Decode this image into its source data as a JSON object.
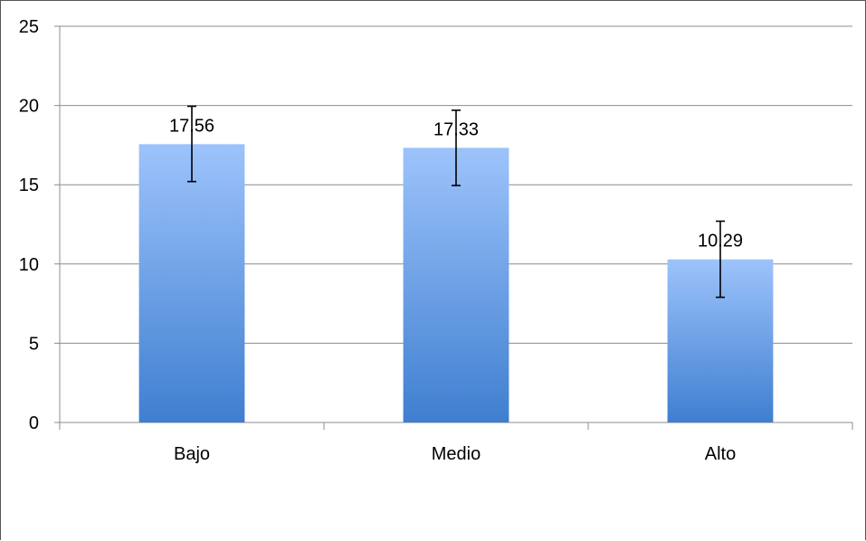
{
  "chart_data": {
    "type": "bar",
    "title": "",
    "xlabel": "",
    "ylabel": "",
    "categories": [
      "Bajo",
      "Medio",
      "Alto"
    ],
    "values": [
      17.56,
      17.33,
      10.29
    ],
    "value_labels": [
      "17.56",
      "17.33",
      "10.29"
    ],
    "error_bars": [
      {
        "low": 15.2,
        "high": 19.95
      },
      {
        "low": 14.95,
        "high": 19.7
      },
      {
        "low": 7.9,
        "high": 12.7
      }
    ],
    "ylim": [
      0,
      25
    ],
    "yticks": [
      0,
      5,
      10,
      15,
      20,
      25
    ],
    "ytick_labels": [
      "0",
      "5",
      "10",
      "15",
      "20",
      "25"
    ],
    "grid": true,
    "legend": "none",
    "colors": {
      "bar_top": "#9dc3fb",
      "bar_bottom": "#3f7fd0",
      "grid": "#8c8c8c",
      "error_bar": "#000000"
    }
  }
}
